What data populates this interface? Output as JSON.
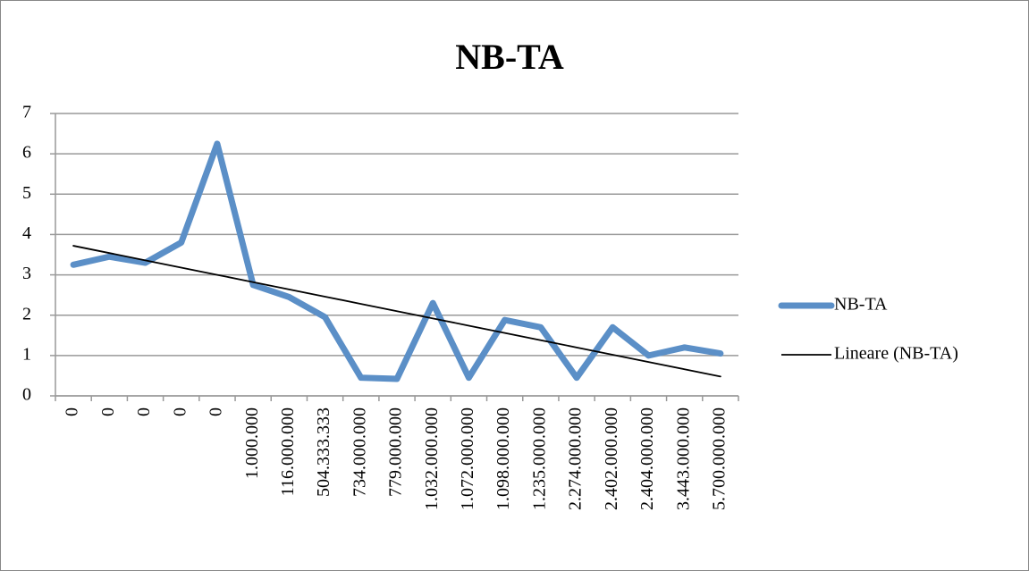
{
  "chart_data": {
    "type": "line",
    "title": "NB-TA",
    "categories": [
      "0",
      "0",
      "0",
      "0",
      "0",
      "1.000.000",
      "116.000.000",
      "504.333.333",
      "734.000.000",
      "779.000.000",
      "1.032.000.000",
      "1.072.000.000",
      "1.098.000.000",
      "1.235.000.000",
      "2.274.000.000",
      "2.402.000.000",
      "2.404.000.000",
      "3.443.000.000",
      "5.700.000.000"
    ],
    "series": [
      {
        "name": "NB-TA",
        "color": "#5b8fc7",
        "values": [
          3.25,
          3.45,
          3.3,
          3.8,
          6.25,
          2.75,
          2.45,
          1.95,
          0.45,
          0.42,
          2.3,
          0.45,
          1.88,
          1.7,
          0.45,
          1.7,
          1.0,
          1.2,
          1.05
        ]
      },
      {
        "name": "Lineare (NB-TA)",
        "color": "#000000",
        "values": [
          3.72,
          3.54,
          3.36,
          3.18,
          3.0,
          2.82,
          2.64,
          2.46,
          2.28,
          2.1,
          1.92,
          1.74,
          1.56,
          1.38,
          1.2,
          1.02,
          0.84,
          0.66,
          0.48
        ]
      }
    ],
    "ylim": [
      0,
      7
    ],
    "yticks": [
      0,
      1,
      2,
      3,
      4,
      5,
      6,
      7
    ],
    "grid": true,
    "legend": "right"
  }
}
